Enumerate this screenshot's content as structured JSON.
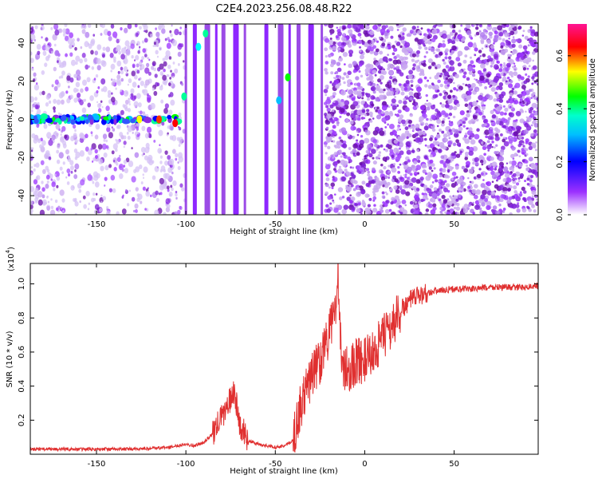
{
  "title": "C2E4.2023.256.08.48.R22",
  "colors": {
    "snr_line": "#e03030",
    "spectrogram_main": "#8a2be2",
    "spectrogram_light": "#c9a8f0"
  },
  "chart_data": [
    {
      "type": "heatmap",
      "title": "C2E4.2023.256.08.48.R22",
      "xlabel": "Height of straight line (km)",
      "ylabel": "Frequency (Hz)",
      "xlim": [
        -187,
        97
      ],
      "ylim": [
        -50,
        50
      ],
      "x_ticks": [
        -150,
        -100,
        -50,
        0,
        50
      ],
      "y_ticks": [
        -40,
        -20,
        0,
        20,
        40
      ],
      "colorbar": {
        "label": "Normalized spectral amplitude",
        "range": [
          0.0,
          0.72
        ],
        "ticks": [
          "0.0",
          "0.2",
          "0.4",
          "0.6"
        ],
        "ticks_values": [
          0.0,
          0.2,
          0.4,
          0.6
        ],
        "colors": [
          "#ffffff",
          "#8a2be2",
          "#0000ff",
          "#00ffff",
          "#00ff00",
          "#ffff00",
          "#ff0000",
          "#ff1493"
        ]
      },
      "features": [
        {
          "name": "horizontal band at 0 Hz",
          "x_range": [
            -187,
            -103
          ],
          "freq": 0
        },
        {
          "name": "vertical streaks",
          "x_values": [
            -100,
            -95,
            -88,
            -83,
            -79,
            -72,
            -67,
            -55,
            -47,
            -42,
            -37,
            -30,
            -24
          ]
        },
        {
          "name": "dense chevron pattern",
          "x_range": [
            -22,
            97
          ]
        }
      ]
    },
    {
      "type": "line",
      "xlabel": "Height of straight line (km)",
      "ylabel": "SNR (10 * v/v)",
      "y_scale_label": "(x10",
      "y_scale_exp": "4",
      "y_scale_close": ")",
      "xlim": [
        -187,
        97
      ],
      "ylim": [
        0,
        1.12
      ],
      "x_ticks": [
        -150,
        -100,
        -50,
        0,
        50
      ],
      "y_ticks": [
        "0.2",
        "0.4",
        "0.6",
        "0.8",
        "1.0"
      ],
      "y_tick_values": [
        0.2,
        0.4,
        0.6,
        0.8,
        1.0
      ],
      "series": [
        {
          "x": [
            -187,
            -170,
            -150,
            -130,
            -110,
            -100,
            -95,
            -90,
            -85,
            -80,
            -75,
            -73,
            -70,
            -65,
            -60,
            -55,
            -50,
            -45,
            -40,
            -38,
            -35,
            -32,
            -30,
            -28,
            -25,
            -22,
            -20,
            -18,
            -16,
            -15,
            -14,
            -13,
            -12,
            -10,
            -8,
            -5,
            0,
            5,
            10,
            15,
            20,
            25,
            30,
            35,
            40,
            50,
            60,
            70,
            80,
            90,
            97
          ],
          "y": [
            0.03,
            0.03,
            0.03,
            0.03,
            0.04,
            0.06,
            0.05,
            0.07,
            0.12,
            0.22,
            0.32,
            0.38,
            0.18,
            0.08,
            0.06,
            0.05,
            0.04,
            0.05,
            0.08,
            0.2,
            0.3,
            0.4,
            0.45,
            0.5,
            0.55,
            0.65,
            0.7,
            0.78,
            0.9,
            1.12,
            0.85,
            0.45,
            0.5,
            0.5,
            0.5,
            0.55,
            0.55,
            0.6,
            0.68,
            0.75,
            0.84,
            0.9,
            0.93,
            0.95,
            0.96,
            0.97,
            0.97,
            0.98,
            0.98,
            0.98,
            0.99
          ]
        }
      ]
    }
  ]
}
